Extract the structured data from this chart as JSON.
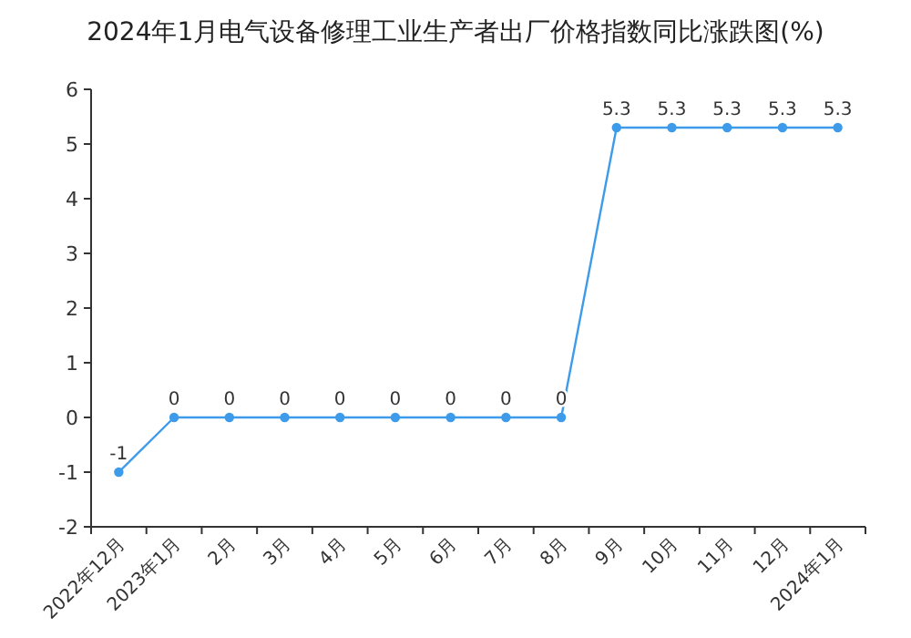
{
  "chart_data": {
    "type": "line",
    "title": "2024年1月电气设备修理工业生产者出厂价格指数同比涨跌图(%)",
    "categories": [
      "2022年12月",
      "2023年1月",
      "2月",
      "3月",
      "4月",
      "5月",
      "6月",
      "7月",
      "8月",
      "9月",
      "10月",
      "11月",
      "12月",
      "2024年1月"
    ],
    "series": [
      {
        "color": "#3d9be9",
        "values": [
          -1,
          0,
          0,
          0,
          0,
          0,
          0,
          0,
          0,
          5.3,
          5.3,
          5.3,
          5.3,
          5.3
        ]
      }
    ],
    "ylim": [
      -2,
      6
    ],
    "yticks": [
      -2,
      -1,
      0,
      1,
      2,
      3,
      4,
      5,
      6
    ],
    "marker": "circle",
    "data_labels": true
  }
}
